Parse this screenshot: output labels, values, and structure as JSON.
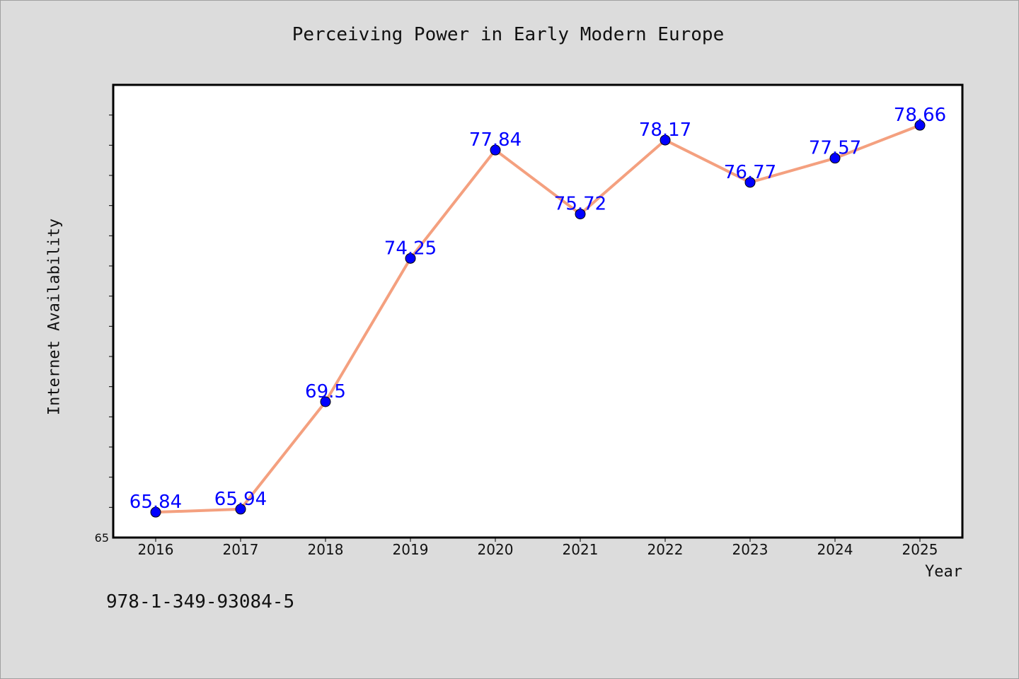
{
  "colors": {
    "background": "#dcdcdc",
    "plot_background": "#ffffff",
    "line": "#f4a07f",
    "marker": "#0000ff",
    "data_label": "#0000ff"
  },
  "chart_data": {
    "type": "line",
    "title": "Perceiving Power in Early Modern Europe",
    "xlabel": "Year",
    "ylabel": "Internet Availability",
    "categories": [
      "2016",
      "2017",
      "2018",
      "2019",
      "2020",
      "2021",
      "2022",
      "2023",
      "2024",
      "2025"
    ],
    "series": [
      {
        "values": [
          65.84,
          65.94,
          69.5,
          74.25,
          77.84,
          75.72,
          78.17,
          76.77,
          77.57,
          78.66
        ],
        "labels": [
          "65.84",
          "65.94",
          "69.5",
          "74.25",
          "77.84",
          "75.72",
          "78.17",
          "76.77",
          "77.57",
          "78.66"
        ]
      }
    ],
    "ylim": [
      65,
      80
    ],
    "ytick_labels": [
      "65"
    ],
    "grid": false,
    "legend": "none"
  },
  "footer": {
    "code": "978-1-349-93084-5"
  }
}
